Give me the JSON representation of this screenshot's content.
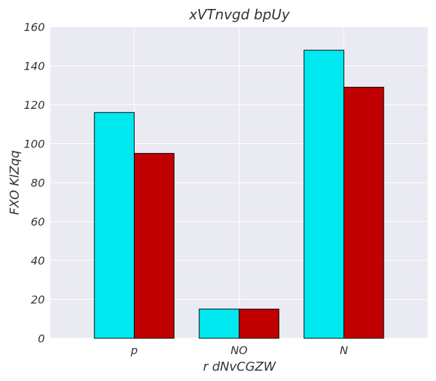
{
  "chart_data": {
    "type": "bar",
    "title": "xVTnvgd bpUy",
    "xlabel": "r dNvCGZW",
    "ylabel": "FXO KlZqq",
    "categories": [
      "p",
      "NO",
      "N"
    ],
    "series": [
      {
        "values": [
          116,
          15,
          148
        ],
        "color": "#00e8f0"
      },
      {
        "values": [
          95,
          15,
          129
        ],
        "color": "#c00000"
      }
    ],
    "ylim": [
      0,
      160
    ],
    "yticks": [
      0,
      20,
      40,
      60,
      80,
      100,
      120,
      140,
      160
    ],
    "grid": true,
    "legend": "none",
    "background": "#eaeaf2"
  }
}
